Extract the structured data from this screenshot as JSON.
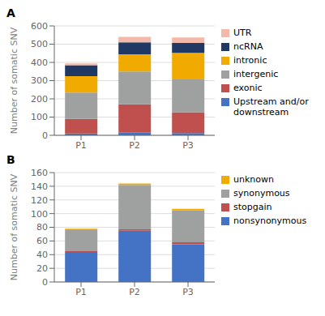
{
  "chart_data": [
    {
      "type": "bar",
      "title": "A",
      "categories": [
        "P1",
        "P2",
        "P3"
      ],
      "stacked": true,
      "grid": true,
      "legend": "right",
      "ylabel": "Number of somatic SNV",
      "ylim": [
        0,
        600
      ],
      "yticks": [
        0,
        100,
        200,
        300,
        400,
        500,
        600
      ],
      "series": [
        {
          "name": "Upstream and/or\ndownstream",
          "color": "#4472c4",
          "values": [
            10,
            15,
            12
          ]
        },
        {
          "name": "exonic",
          "color": "#c0504d",
          "values": [
            80,
            155,
            115
          ]
        },
        {
          "name": "intergenic",
          "color": "#9fa0a0",
          "values": [
            145,
            180,
            180
          ]
        },
        {
          "name": "intronic",
          "color": "#f0aa00",
          "values": [
            90,
            95,
            145
          ]
        },
        {
          "name": "ncRNA",
          "color": "#1f3864",
          "values": [
            60,
            65,
            55
          ]
        },
        {
          "name": "UTR",
          "color": "#f4b8a8",
          "values": [
            10,
            30,
            30
          ]
        }
      ]
    },
    {
      "type": "bar",
      "title": "B",
      "categories": [
        "P1",
        "P2",
        "P3"
      ],
      "stacked": true,
      "grid": true,
      "legend": "right",
      "ylabel": "Number of somatic SNV",
      "ylim": [
        0,
        160
      ],
      "yticks": [
        0,
        20,
        40,
        60,
        80,
        100,
        120,
        140,
        160
      ],
      "series": [
        {
          "name": "nonsynonymous",
          "color": "#4472c4",
          "values": [
            44,
            75,
            55
          ]
        },
        {
          "name": "stopgain",
          "color": "#c0504d",
          "values": [
            1,
            2,
            3
          ]
        },
        {
          "name": "synonymous",
          "color": "#9fa0a0",
          "values": [
            31,
            65,
            47
          ]
        },
        {
          "name": "unknown",
          "color": "#f0aa00",
          "values": [
            2,
            2,
            2
          ]
        }
      ]
    }
  ]
}
